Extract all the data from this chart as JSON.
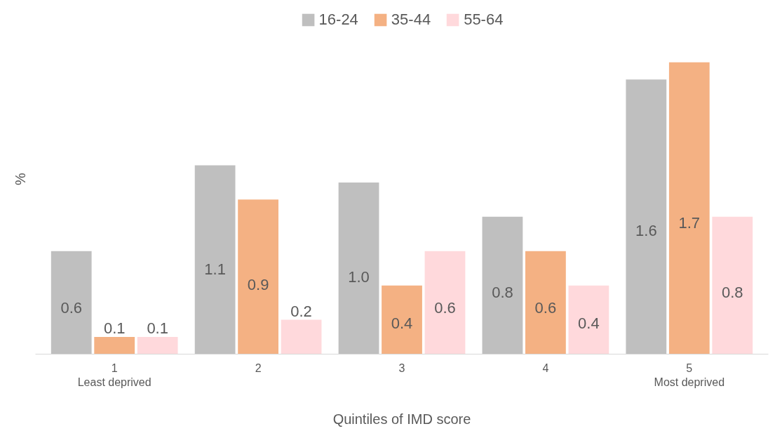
{
  "chart_data": {
    "type": "bar",
    "categories": [
      "1\nLeast deprived",
      "2",
      "3",
      "4",
      "5\nMost deprived"
    ],
    "series": [
      {
        "name": "16-24",
        "color": "#bfbfbf",
        "values": [
          0.6,
          1.1,
          1.0,
          0.8,
          1.6
        ],
        "value_labels": [
          "0.6",
          "1.1",
          "1.0",
          "0.8",
          "1.6"
        ]
      },
      {
        "name": "35-44",
        "color": "#f4b183",
        "values": [
          0.1,
          0.9,
          0.4,
          0.6,
          1.7
        ],
        "value_labels": [
          "0.1",
          "0.9",
          "0.4",
          "0.6",
          "1.7"
        ]
      },
      {
        "name": "55-64",
        "color": "#ffd9dc",
        "values": [
          0.1,
          0.2,
          0.6,
          0.4,
          0.8
        ],
        "value_labels": [
          "0.1",
          "0.2",
          "0.6",
          "0.4",
          "0.8"
        ]
      }
    ],
    "xlabel": "Quintiles of IMD score",
    "ylabel": "%",
    "legend": "top",
    "grid": false
  }
}
